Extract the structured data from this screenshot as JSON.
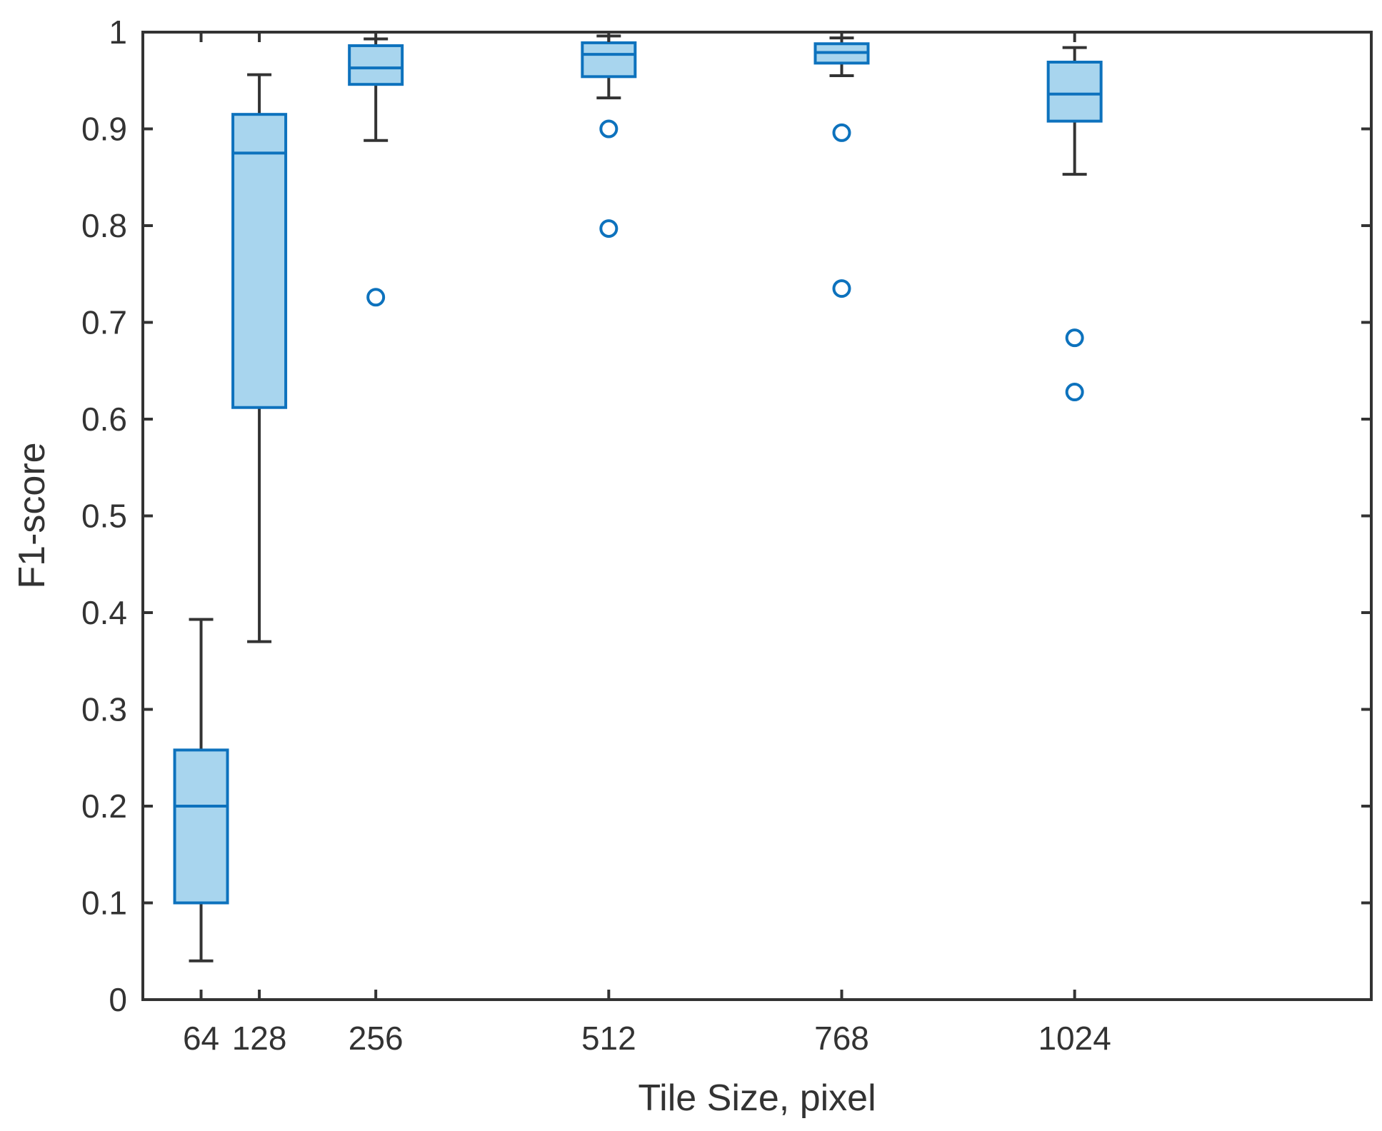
{
  "chart_data": {
    "type": "box",
    "xlabel": "Tile Size, pixel",
    "ylabel": "F1-score",
    "ylim": [
      0,
      1
    ],
    "xlim": [
      0,
      1350
    ],
    "yticks": [
      "0",
      "0.1",
      "0.2",
      "0.3",
      "0.4",
      "0.5",
      "0.6",
      "0.7",
      "0.8",
      "0.9",
      "1"
    ],
    "grid": false,
    "boxes": [
      {
        "label": "64",
        "x": 64,
        "whisker_low": 0.04,
        "q1": 0.1,
        "median": 0.2,
        "q3": 0.258,
        "whisker_high": 0.393,
        "outliers": []
      },
      {
        "label": "128",
        "x": 128,
        "whisker_low": 0.37,
        "q1": 0.612,
        "median": 0.875,
        "q3": 0.915,
        "whisker_high": 0.956,
        "outliers": []
      },
      {
        "label": "256",
        "x": 256,
        "whisker_low": 0.888,
        "q1": 0.946,
        "median": 0.963,
        "q3": 0.986,
        "whisker_high": 0.993,
        "outliers": [
          0.726
        ]
      },
      {
        "label": "512",
        "x": 512,
        "whisker_low": 0.932,
        "q1": 0.954,
        "median": 0.977,
        "q3": 0.989,
        "whisker_high": 0.996,
        "outliers": [
          0.9,
          0.797
        ]
      },
      {
        "label": "768",
        "x": 768,
        "whisker_low": 0.955,
        "q1": 0.968,
        "median": 0.979,
        "q3": 0.988,
        "whisker_high": 0.994,
        "outliers": [
          0.896,
          0.735
        ]
      },
      {
        "label": "1024",
        "x": 1024,
        "whisker_low": 0.853,
        "q1": 0.908,
        "median": 0.936,
        "q3": 0.969,
        "whisker_high": 0.984,
        "outliers": [
          0.684,
          0.628
        ]
      }
    ],
    "colors": {
      "box_fill": "#a8d5ee",
      "box_edge": "#0d72bd",
      "whisker": "#333333",
      "outlier": "#0d72bd",
      "axis": "#333333"
    }
  }
}
